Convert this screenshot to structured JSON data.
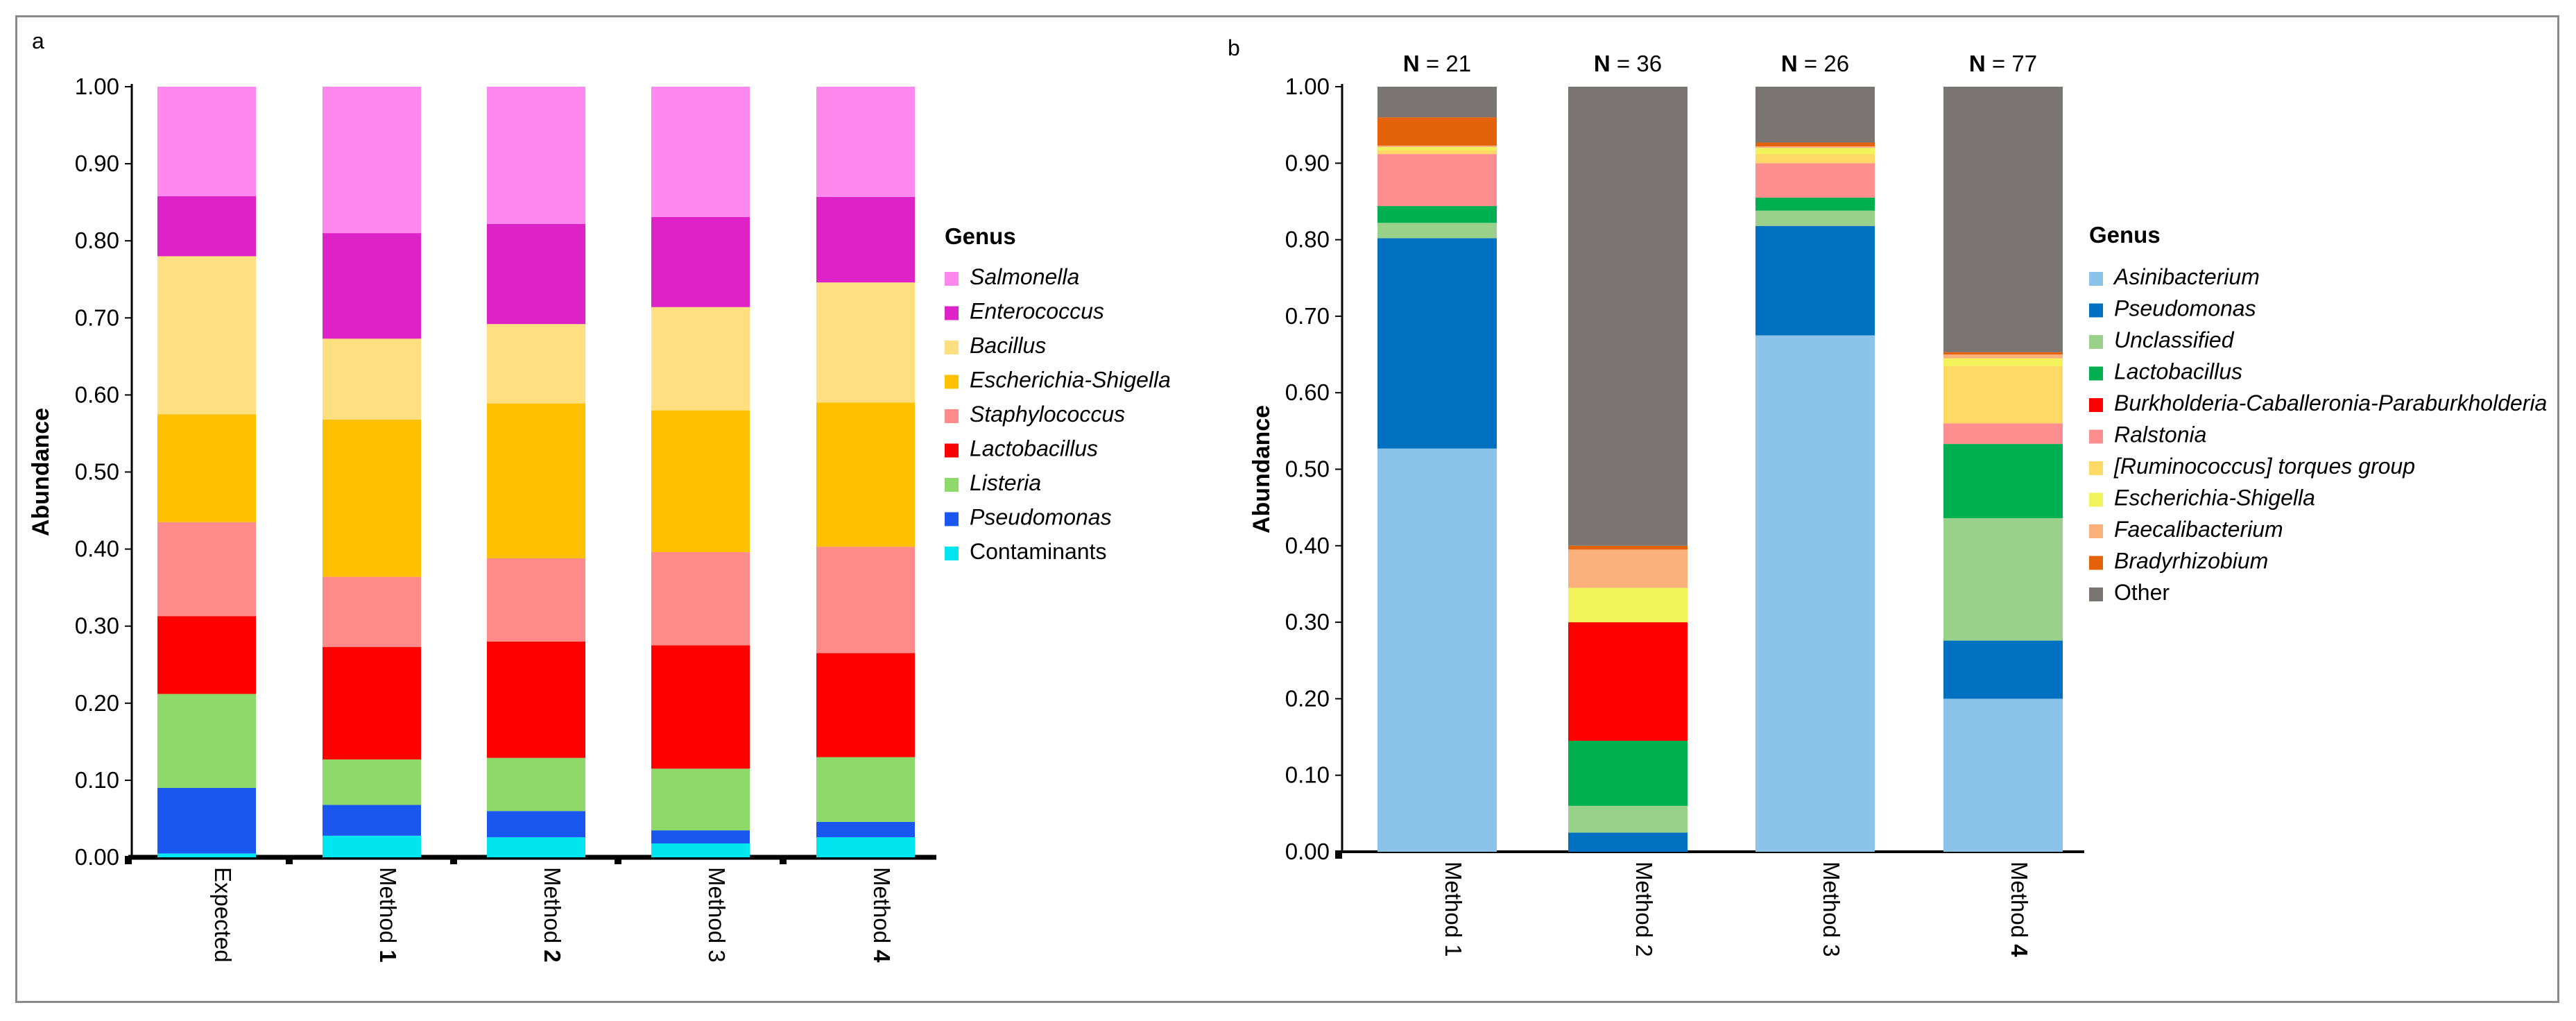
{
  "chart_data": [
    {
      "panel_label": "a",
      "type": "bar",
      "stacked": true,
      "ylabel": "Abundance",
      "ylim": [
        0,
        1
      ],
      "yticks": [
        "0.00",
        "0.10",
        "0.20",
        "0.30",
        "0.40",
        "0.50",
        "0.60",
        "0.70",
        "0.80",
        "0.90",
        "1.00"
      ],
      "categories": [
        "Expected",
        "Method 1",
        "Method 2",
        "Method 3",
        "Method 4"
      ],
      "category_labels": [
        {
          "text": "Expected",
          "bold_part": ""
        },
        {
          "text": "Method ",
          "bold_part": "1"
        },
        {
          "text": "Method ",
          "bold_part": "2"
        },
        {
          "text": "Method 3",
          "bold_part": ""
        },
        {
          "text": "Method ",
          "bold_part": "4"
        }
      ],
      "legend_title": "Genus",
      "legend_position": "right",
      "series": [
        {
          "name": "Contaminants",
          "italic": false,
          "color": "#00e5f0",
          "values": [
            0.005,
            0.028,
            0.026,
            0.018,
            0.026
          ]
        },
        {
          "name": "Pseudomonas",
          "italic": true,
          "color": "#1a56f0",
          "values": [
            0.085,
            0.04,
            0.034,
            0.017,
            0.02
          ]
        },
        {
          "name": "Listeria",
          "italic": true,
          "color": "#8fd86a",
          "values": [
            0.122,
            0.059,
            0.069,
            0.08,
            0.084
          ]
        },
        {
          "name": "Lactobacillus",
          "italic": true,
          "color": "#ff0000",
          "values": [
            0.101,
            0.146,
            0.151,
            0.16,
            0.135
          ]
        },
        {
          "name": "Staphylococcus",
          "italic": true,
          "color": "#ff8a8a",
          "values": [
            0.122,
            0.091,
            0.108,
            0.121,
            0.138
          ]
        },
        {
          "name": "Escherichia-Shigella",
          "italic": true,
          "color": "#ffc000",
          "values": [
            0.14,
            0.204,
            0.201,
            0.184,
            0.187
          ]
        },
        {
          "name": "Bacillus",
          "italic": true,
          "color": "#ffdf7f",
          "values": [
            0.205,
            0.105,
            0.103,
            0.134,
            0.156
          ]
        },
        {
          "name": "Enterococcus",
          "italic": true,
          "color": "#dd22c8",
          "values": [
            0.078,
            0.137,
            0.13,
            0.117,
            0.111
          ]
        },
        {
          "name": "Salmonella",
          "italic": true,
          "color": "#ff88ee",
          "values": [
            0.142,
            0.19,
            0.178,
            0.169,
            0.143
          ]
        }
      ]
    },
    {
      "panel_label": "b",
      "type": "bar",
      "stacked": true,
      "ylabel": "Abundance",
      "ylim": [
        0,
        1
      ],
      "yticks": [
        "0.00",
        "0.10",
        "0.20",
        "0.30",
        "0.40",
        "0.50",
        "0.60",
        "0.70",
        "0.80",
        "0.90",
        "1.00"
      ],
      "categories": [
        "Method 1",
        "Method 2",
        "Method 3",
        "Method 4"
      ],
      "category_labels": [
        {
          "text": "Method 1",
          "bold_part": ""
        },
        {
          "text": "Method 2",
          "bold_part": ""
        },
        {
          "text": "Method 3",
          "bold_part": ""
        },
        {
          "text": "Method ",
          "bold_part": "4"
        }
      ],
      "annotations": [
        {
          "prefix": "N",
          "value": "= 21"
        },
        {
          "prefix": "N",
          "value": "= 36"
        },
        {
          "prefix": "N",
          "value": "= 26"
        },
        {
          "prefix": "N",
          "value": "= 77"
        }
      ],
      "legend_title": "Genus",
      "legend_position": "right",
      "series": [
        {
          "name": "Asinibacterium",
          "italic": true,
          "color": "#8cc3e8",
          "values": [
            0.527,
            0.0,
            0.675,
            0.2
          ]
        },
        {
          "name": "Pseudomonas",
          "italic": true,
          "color": "#0070c0",
          "values": [
            0.275,
            0.025,
            0.143,
            0.076
          ]
        },
        {
          "name": "Unclassified",
          "italic": true,
          "color": "#99d18a",
          "values": [
            0.02,
            0.035,
            0.02,
            0.16
          ]
        },
        {
          "name": "Lactobacillus",
          "italic": true,
          "color": "#00b050",
          "values": [
            0.022,
            0.085,
            0.017,
            0.097
          ]
        },
        {
          "name": "Burkholderia-Caballeronia-Paraburkholderia",
          "italic": true,
          "small": true,
          "color": "#ff0000",
          "values": [
            0.0,
            0.155,
            0.0,
            0.0
          ]
        },
        {
          "name": "Ralstonia",
          "italic": true,
          "color": "#ff8f8f",
          "values": [
            0.068,
            0.0,
            0.045,
            0.027
          ]
        },
        {
          "name": "[Ruminococcus] torques group",
          "italic": true,
          "color": "#ffd966",
          "values": [
            0.005,
            0.0,
            0.012,
            0.075
          ]
        },
        {
          "name": "Escherichia-Shigella",
          "italic": true,
          "color": "#f2f25a",
          "values": [
            0.004,
            0.045,
            0.008,
            0.01
          ]
        },
        {
          "name": "Faecalibacterium",
          "italic": true,
          "color": "#fbb07c",
          "values": [
            0.002,
            0.05,
            0.002,
            0.005
          ]
        },
        {
          "name": "Bradyrhizobium",
          "italic": true,
          "color": "#e3620a",
          "values": [
            0.037,
            0.005,
            0.005,
            0.003
          ]
        },
        {
          "name": "Other",
          "italic": false,
          "color": "#7a7473",
          "values": [
            0.04,
            0.6,
            0.073,
            0.347
          ]
        }
      ]
    }
  ]
}
